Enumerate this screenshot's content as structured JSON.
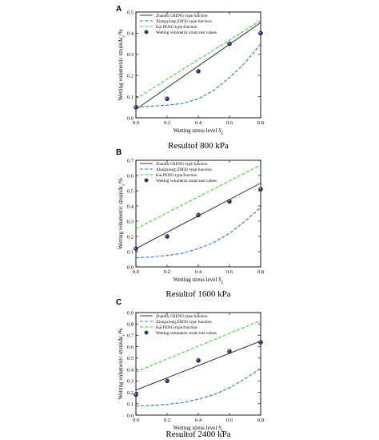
{
  "chart_data": [
    {
      "type": "line",
      "panel_label": "A",
      "caption": "Resultof 800 kPa",
      "xlabel": "Wetting stress level S_L",
      "ylabel": "Wetting volumetric strainΔε_s/%",
      "xlim": [
        0.0,
        0.8
      ],
      "ylim": [
        0.0,
        0.5
      ],
      "xticks": [
        0.0,
        0.2,
        0.4,
        0.6,
        0.8
      ],
      "yticks": [
        0.0,
        0.1,
        0.2,
        0.3,
        0.4,
        0.5
      ],
      "legend_position": "top-left",
      "grid": false,
      "series": [
        {
          "name": "Zhanlin CHENG-type function",
          "style": "solid",
          "color": "#222222",
          "x": [
            0.0,
            0.8
          ],
          "y": [
            0.04,
            0.45
          ]
        },
        {
          "name": "Xiongxiong ZHOU-type function",
          "style": "dashed",
          "color": "#2e6fd1",
          "x": [
            0.0,
            0.1,
            0.2,
            0.3,
            0.4,
            0.5,
            0.6,
            0.7,
            0.8
          ],
          "y": [
            0.05,
            0.055,
            0.06,
            0.068,
            0.09,
            0.13,
            0.19,
            0.26,
            0.35
          ]
        },
        {
          "name": "Kai PENG-type function",
          "style": "dashed",
          "color": "#38d13a",
          "x": [
            0.0,
            0.8
          ],
          "y": [
            0.09,
            0.46
          ]
        },
        {
          "name": "Wetting volumetric strain test values",
          "style": "marker",
          "color": "#2c3170",
          "x": [
            0.0,
            0.2,
            0.4,
            0.6,
            0.8
          ],
          "y": [
            0.05,
            0.09,
            0.22,
            0.35,
            0.4
          ]
        }
      ]
    },
    {
      "type": "line",
      "panel_label": "B",
      "caption": "Resultof 1600 kPa",
      "xlabel": "Wetting stress level S_L",
      "ylabel": "Wetting volumetric strainΔε_s/%",
      "xlim": [
        0.0,
        0.8
      ],
      "ylim": [
        0.0,
        0.7
      ],
      "xticks": [
        0.0,
        0.2,
        0.4,
        0.6,
        0.8
      ],
      "yticks": [
        0.0,
        0.1,
        0.2,
        0.3,
        0.4,
        0.5,
        0.6,
        0.7
      ],
      "legend_position": "top-left",
      "grid": false,
      "series": [
        {
          "name": "Zhanlin CHENG-type function",
          "style": "solid",
          "color": "#222222",
          "x": [
            0.0,
            0.8
          ],
          "y": [
            0.12,
            0.55
          ]
        },
        {
          "name": "Xiongxiong ZHOU-type function",
          "style": "dashed",
          "color": "#2e6fd1",
          "x": [
            0.0,
            0.1,
            0.2,
            0.3,
            0.4,
            0.5,
            0.6,
            0.7,
            0.8
          ],
          "y": [
            0.06,
            0.065,
            0.075,
            0.09,
            0.12,
            0.16,
            0.22,
            0.3,
            0.39
          ]
        },
        {
          "name": "Kai PENG-type function",
          "style": "dashed",
          "color": "#38d13a",
          "x": [
            0.0,
            0.8
          ],
          "y": [
            0.25,
            0.67
          ]
        },
        {
          "name": "Wetting volumetric strain test values",
          "style": "marker",
          "color": "#2c3170",
          "x": [
            0.0,
            0.2,
            0.4,
            0.6,
            0.8
          ],
          "y": [
            0.12,
            0.2,
            0.34,
            0.43,
            0.51
          ]
        }
      ]
    },
    {
      "type": "line",
      "panel_label": "C",
      "caption": "Resultof 2400 kPa",
      "xlabel": "Wetting stress level S_L",
      "ylabel": "Wetting volumetric strainΔε_s/%",
      "xlim": [
        0.0,
        0.8
      ],
      "ylim": [
        0.0,
        0.9
      ],
      "xticks": [
        0.0,
        0.2,
        0.4,
        0.6,
        0.8
      ],
      "yticks": [
        0.0,
        0.1,
        0.2,
        0.3,
        0.4,
        0.5,
        0.6,
        0.7,
        0.8,
        0.9
      ],
      "legend_position": "top-left",
      "grid": false,
      "series": [
        {
          "name": "Zhanlin CHENG-type function",
          "style": "solid",
          "color": "#222222",
          "x": [
            0.0,
            0.8
          ],
          "y": [
            0.22,
            0.65
          ]
        },
        {
          "name": "Xiongxiong ZHOU-type function",
          "style": "dashed",
          "color": "#2e6fd1",
          "x": [
            0.0,
            0.1,
            0.2,
            0.3,
            0.4,
            0.5,
            0.6,
            0.7,
            0.8
          ],
          "y": [
            0.08,
            0.085,
            0.095,
            0.11,
            0.14,
            0.18,
            0.24,
            0.32,
            0.41
          ]
        },
        {
          "name": "Kai PENG-type function",
          "style": "dashed",
          "color": "#38d13a",
          "x": [
            0.0,
            0.8
          ],
          "y": [
            0.38,
            0.83
          ]
        },
        {
          "name": "Wetting volumetric strain test values",
          "style": "marker",
          "color": "#2c3170",
          "x": [
            0.0,
            0.2,
            0.4,
            0.6,
            0.8
          ],
          "y": [
            0.18,
            0.3,
            0.48,
            0.56,
            0.64
          ]
        }
      ]
    }
  ]
}
